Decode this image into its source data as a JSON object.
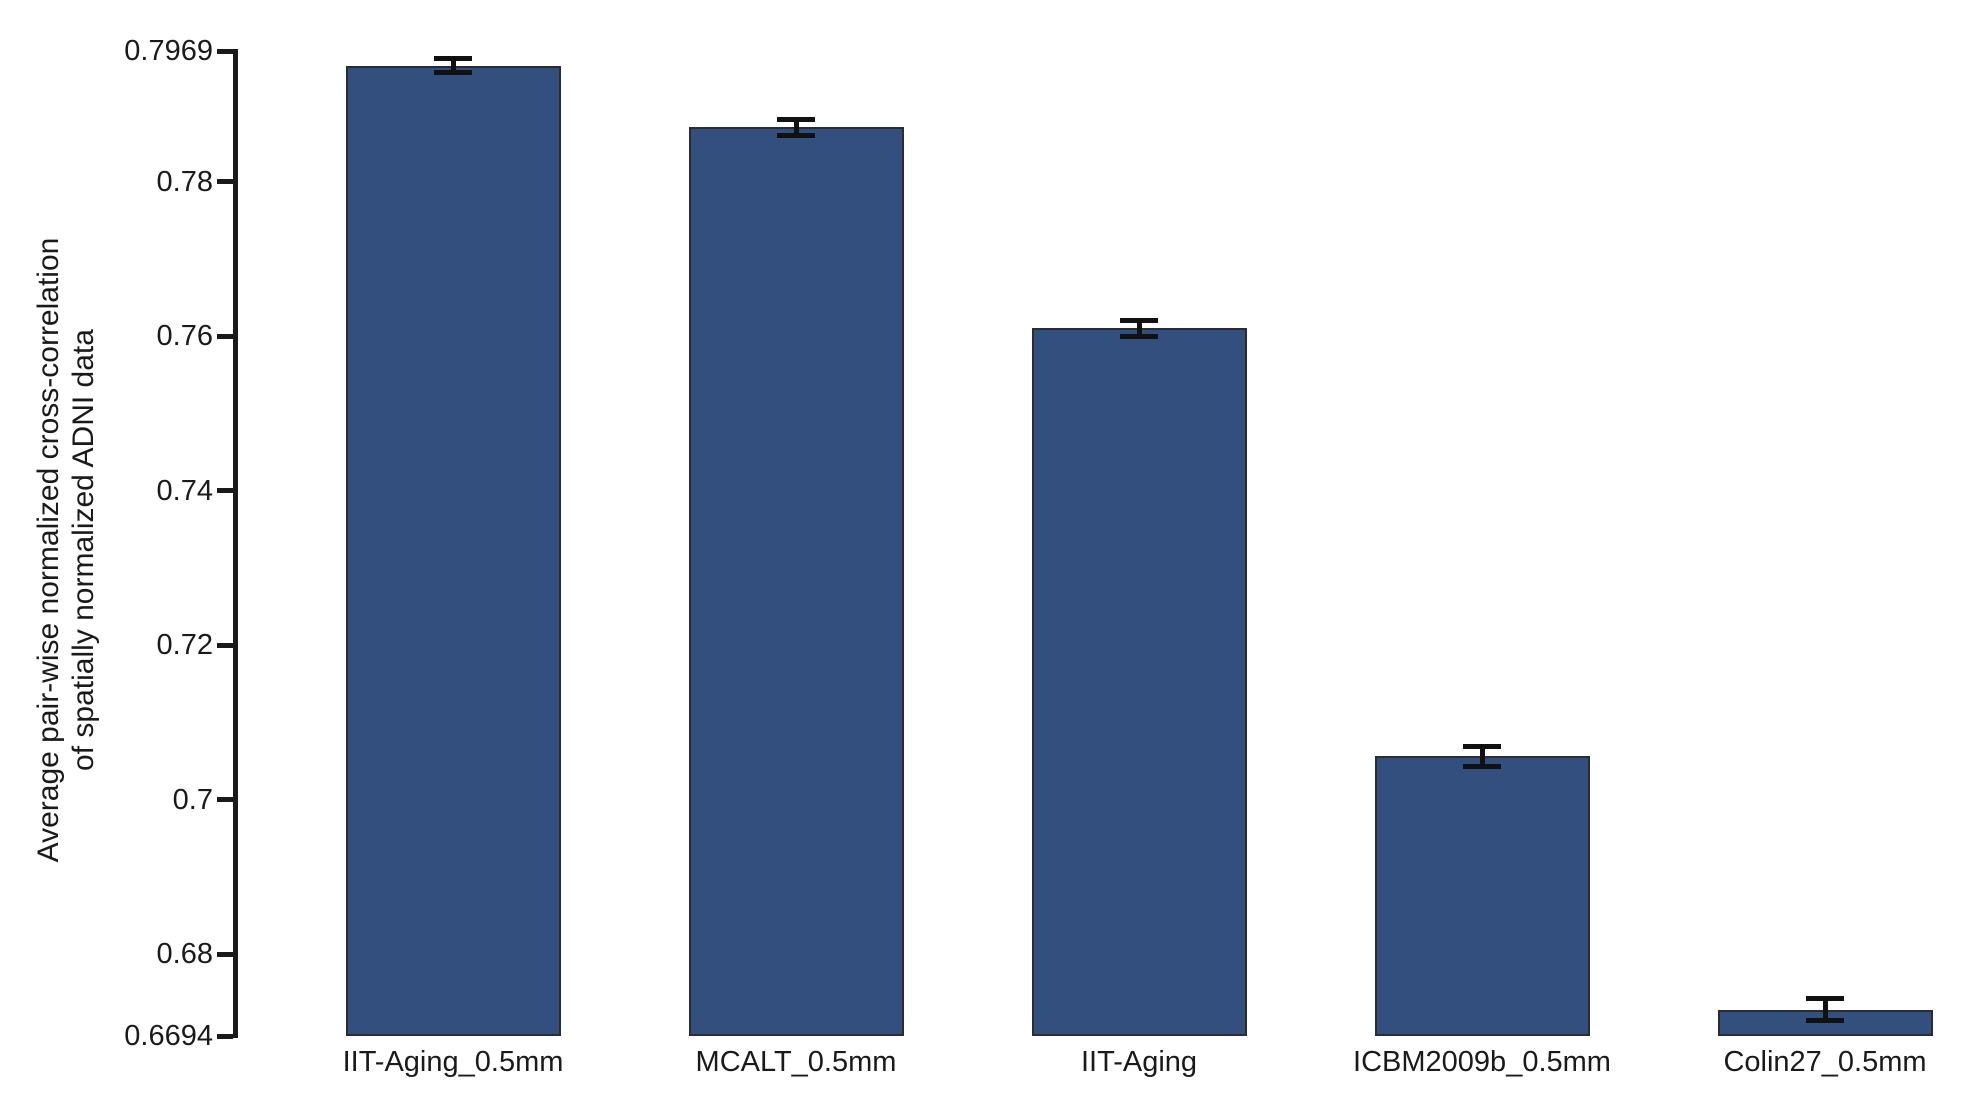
{
  "chart_data": {
    "type": "bar",
    "title": "",
    "xlabel": "",
    "ylabel_lines": [
      "Average pair-wise normalized cross-correlation",
      "of spatially normalized ADNI data"
    ],
    "categories": [
      "IIT-Aging_0.5mm",
      "MCALT_0.5mm",
      "IIT-Aging",
      "ICBM2009b_0.5mm",
      "Colin27_0.5mm"
    ],
    "values": [
      0.795,
      0.787,
      0.761,
      0.7056,
      0.6728
    ],
    "errors": [
      0.0009,
      0.001,
      0.001,
      0.0013,
      0.0014
    ],
    "ylim": [
      0.6694,
      0.7969
    ],
    "yticks": [
      {
        "value": 0.7969,
        "label": "0.7969"
      },
      {
        "value": 0.78,
        "label": "0.78"
      },
      {
        "value": 0.76,
        "label": "0.76"
      },
      {
        "value": 0.74,
        "label": "0.74"
      },
      {
        "value": 0.72,
        "label": "0.72"
      },
      {
        "value": 0.7,
        "label": "0.7"
      },
      {
        "value": 0.68,
        "label": "0.68"
      },
      {
        "value": 0.6694,
        "label": "0.6694"
      }
    ],
    "grid": false,
    "legend": "none",
    "bar_fill_color": "#334F7D",
    "bar_edge_color": "#2B2B33",
    "error_bar_color": "#111111",
    "axis_color": "#1A1A1A",
    "text_color": "#1A1A1A"
  }
}
